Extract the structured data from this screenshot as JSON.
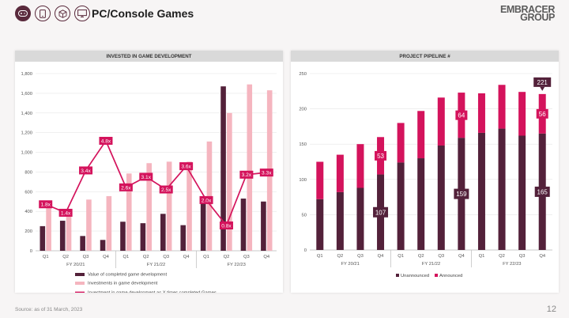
{
  "header": {
    "title": "PC/Console Games",
    "icons": [
      "gamepad-icon",
      "mobile-icon",
      "cube-icon",
      "monitor-icon"
    ],
    "logo_line1": "EMBRACER",
    "logo_line2": "GROUP"
  },
  "colors": {
    "dark": "#53213a",
    "pink": "#f5b5bf",
    "magenta": "#d4135c",
    "accent": "#5a2a3c"
  },
  "chart_data": [
    {
      "type": "bar",
      "title": "INVESTED IN GAME DEVELOPMENT",
      "categories": [
        "Q1",
        "Q2",
        "Q3",
        "Q4",
        "Q1",
        "Q2",
        "Q3",
        "Q4",
        "Q1",
        "Q2",
        "Q3",
        "Q4"
      ],
      "groups": [
        "FY 20/21",
        "FY 21/22",
        "FY 22/23"
      ],
      "ylim": [
        0,
        1800
      ],
      "yticks": [
        "0",
        "200",
        "400",
        "600",
        "800",
        "1,000",
        "1,200",
        "1,400",
        "1,600",
        "1,800"
      ],
      "grid": true,
      "series": [
        {
          "name": "Value of completed game development",
          "color": "#53213a",
          "values": [
            250,
            305,
            150,
            110,
            295,
            280,
            375,
            260,
            540,
            1670,
            530,
            500
          ]
        },
        {
          "name": "Investments in game development",
          "color": "#f5b5bf",
          "values": [
            450,
            420,
            520,
            555,
            785,
            890,
            905,
            905,
            1110,
            1400,
            1690,
            1630
          ]
        }
      ],
      "line": {
        "name": "Investment in game development as X times completed Games",
        "color": "#d4135c",
        "ratios": [
          1.8,
          1.4,
          3.4,
          4.8,
          2.6,
          3.1,
          2.5,
          3.6,
          2.0,
          0.8,
          3.2,
          3.3
        ],
        "labels": [
          "1.8x",
          "1.4x",
          "3.4x",
          "4.8x",
          "2.6x",
          "3.1x",
          "2.5x",
          "3.6x",
          "2.0x",
          "0.8x",
          "3.2x",
          "3.3x"
        ]
      },
      "legend_position": "bottom"
    },
    {
      "type": "bar",
      "stacked": true,
      "title": "PROJECT PIPELINE #",
      "categories": [
        "Q1",
        "Q2",
        "Q3",
        "Q4",
        "Q1",
        "Q2",
        "Q3",
        "Q4",
        "Q1",
        "Q2",
        "Q3",
        "Q4"
      ],
      "groups": [
        "FY 20/21",
        "FY 21/22",
        "FY 22/23"
      ],
      "ylim": [
        0,
        250
      ],
      "yticks": [
        "0",
        "50",
        "100",
        "150",
        "200",
        "250"
      ],
      "grid": true,
      "series": [
        {
          "name": "Unannounced",
          "color": "#53213a",
          "values": [
            72,
            82,
            88,
            107,
            124,
            130,
            148,
            159,
            166,
            172,
            162,
            165
          ]
        },
        {
          "name": "Announced",
          "color": "#d4135c",
          "values": [
            53,
            53,
            62,
            53,
            56,
            67,
            68,
            64,
            56,
            62,
            62,
            56
          ]
        }
      ],
      "data_labels": {
        "unannounced": [
          "",
          "",
          "",
          "107",
          "",
          "",
          "",
          "159",
          "",
          "",
          "",
          "165"
        ],
        "announced": [
          "",
          "",
          "",
          "53",
          "",
          "",
          "",
          "64",
          "",
          "",
          "",
          "56"
        ]
      },
      "total_callout": {
        "index": 11,
        "label": "221"
      },
      "legend_position": "bottom"
    }
  ],
  "footer": {
    "source": "Source: as of 31 March, 2023",
    "page": "12"
  }
}
